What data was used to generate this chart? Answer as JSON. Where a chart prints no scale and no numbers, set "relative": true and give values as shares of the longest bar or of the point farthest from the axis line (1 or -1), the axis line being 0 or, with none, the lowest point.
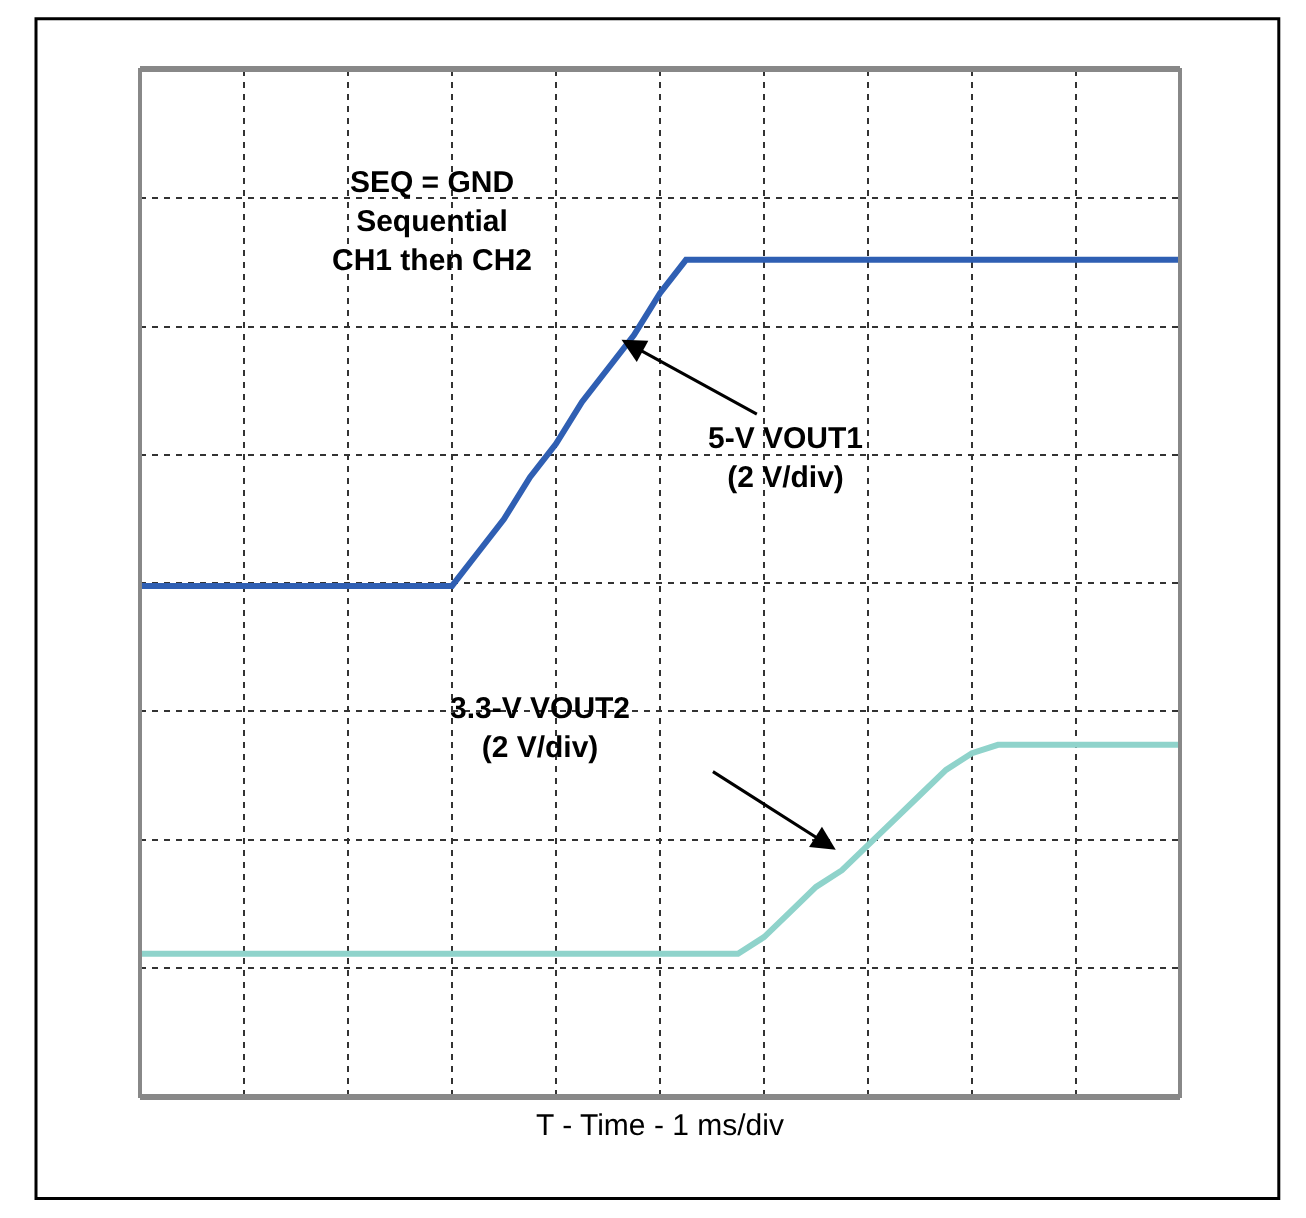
{
  "chart_data": {
    "type": "line",
    "relative": true,
    "xlabel": "T - Time - 1 ms/div",
    "categories": [
      null,
      null,
      null,
      null,
      null,
      null,
      null,
      null,
      null,
      null,
      null,
      null,
      null,
      null,
      null,
      null,
      null,
      null,
      null,
      null,
      null,
      null,
      null,
      null,
      null,
      null,
      null,
      null,
      null,
      null,
      null,
      null,
      null,
      null,
      null,
      null,
      null,
      null,
      null,
      null,
      null
    ],
    "series": [
      {
        "color": "#2f5fb3",
        "values": [
          0.61,
          0.61,
          0.61,
          0.61,
          0.61,
          0.61,
          0.61,
          0.61,
          0.61,
          0.61,
          0.61,
          0.61,
          0.61,
          0.65,
          0.69,
          0.74,
          0.78,
          0.83,
          0.87,
          0.91,
          0.96,
          1,
          1,
          1,
          1,
          1,
          1,
          1,
          1,
          1,
          1,
          1,
          1,
          1,
          1,
          1,
          1,
          1,
          1,
          1,
          1
        ]
      },
      {
        "color": "#8fd3cb",
        "values": [
          0.17,
          0.17,
          0.17,
          0.17,
          0.17,
          0.17,
          0.17,
          0.17,
          0.17,
          0.17,
          0.17,
          0.17,
          0.17,
          0.17,
          0.17,
          0.17,
          0.17,
          0.17,
          0.17,
          0.17,
          0.17,
          0.17,
          0.17,
          0.17,
          0.19,
          0.22,
          0.25,
          0.27,
          0.3,
          0.33,
          0.36,
          0.39,
          0.41,
          0.42,
          0.42,
          0.42,
          0.42,
          0.42,
          0.42,
          0.42,
          0.42
        ]
      }
    ],
    "annotations": [
      "SEQ = GND\nSequential\nCH1 then CH2",
      "5-V VOUT1\n(2 V/div)",
      "3.3-V VOUT2\n(2 V/div)"
    ],
    "grid": true,
    "marker": "none",
    "line_style": "solid"
  }
}
